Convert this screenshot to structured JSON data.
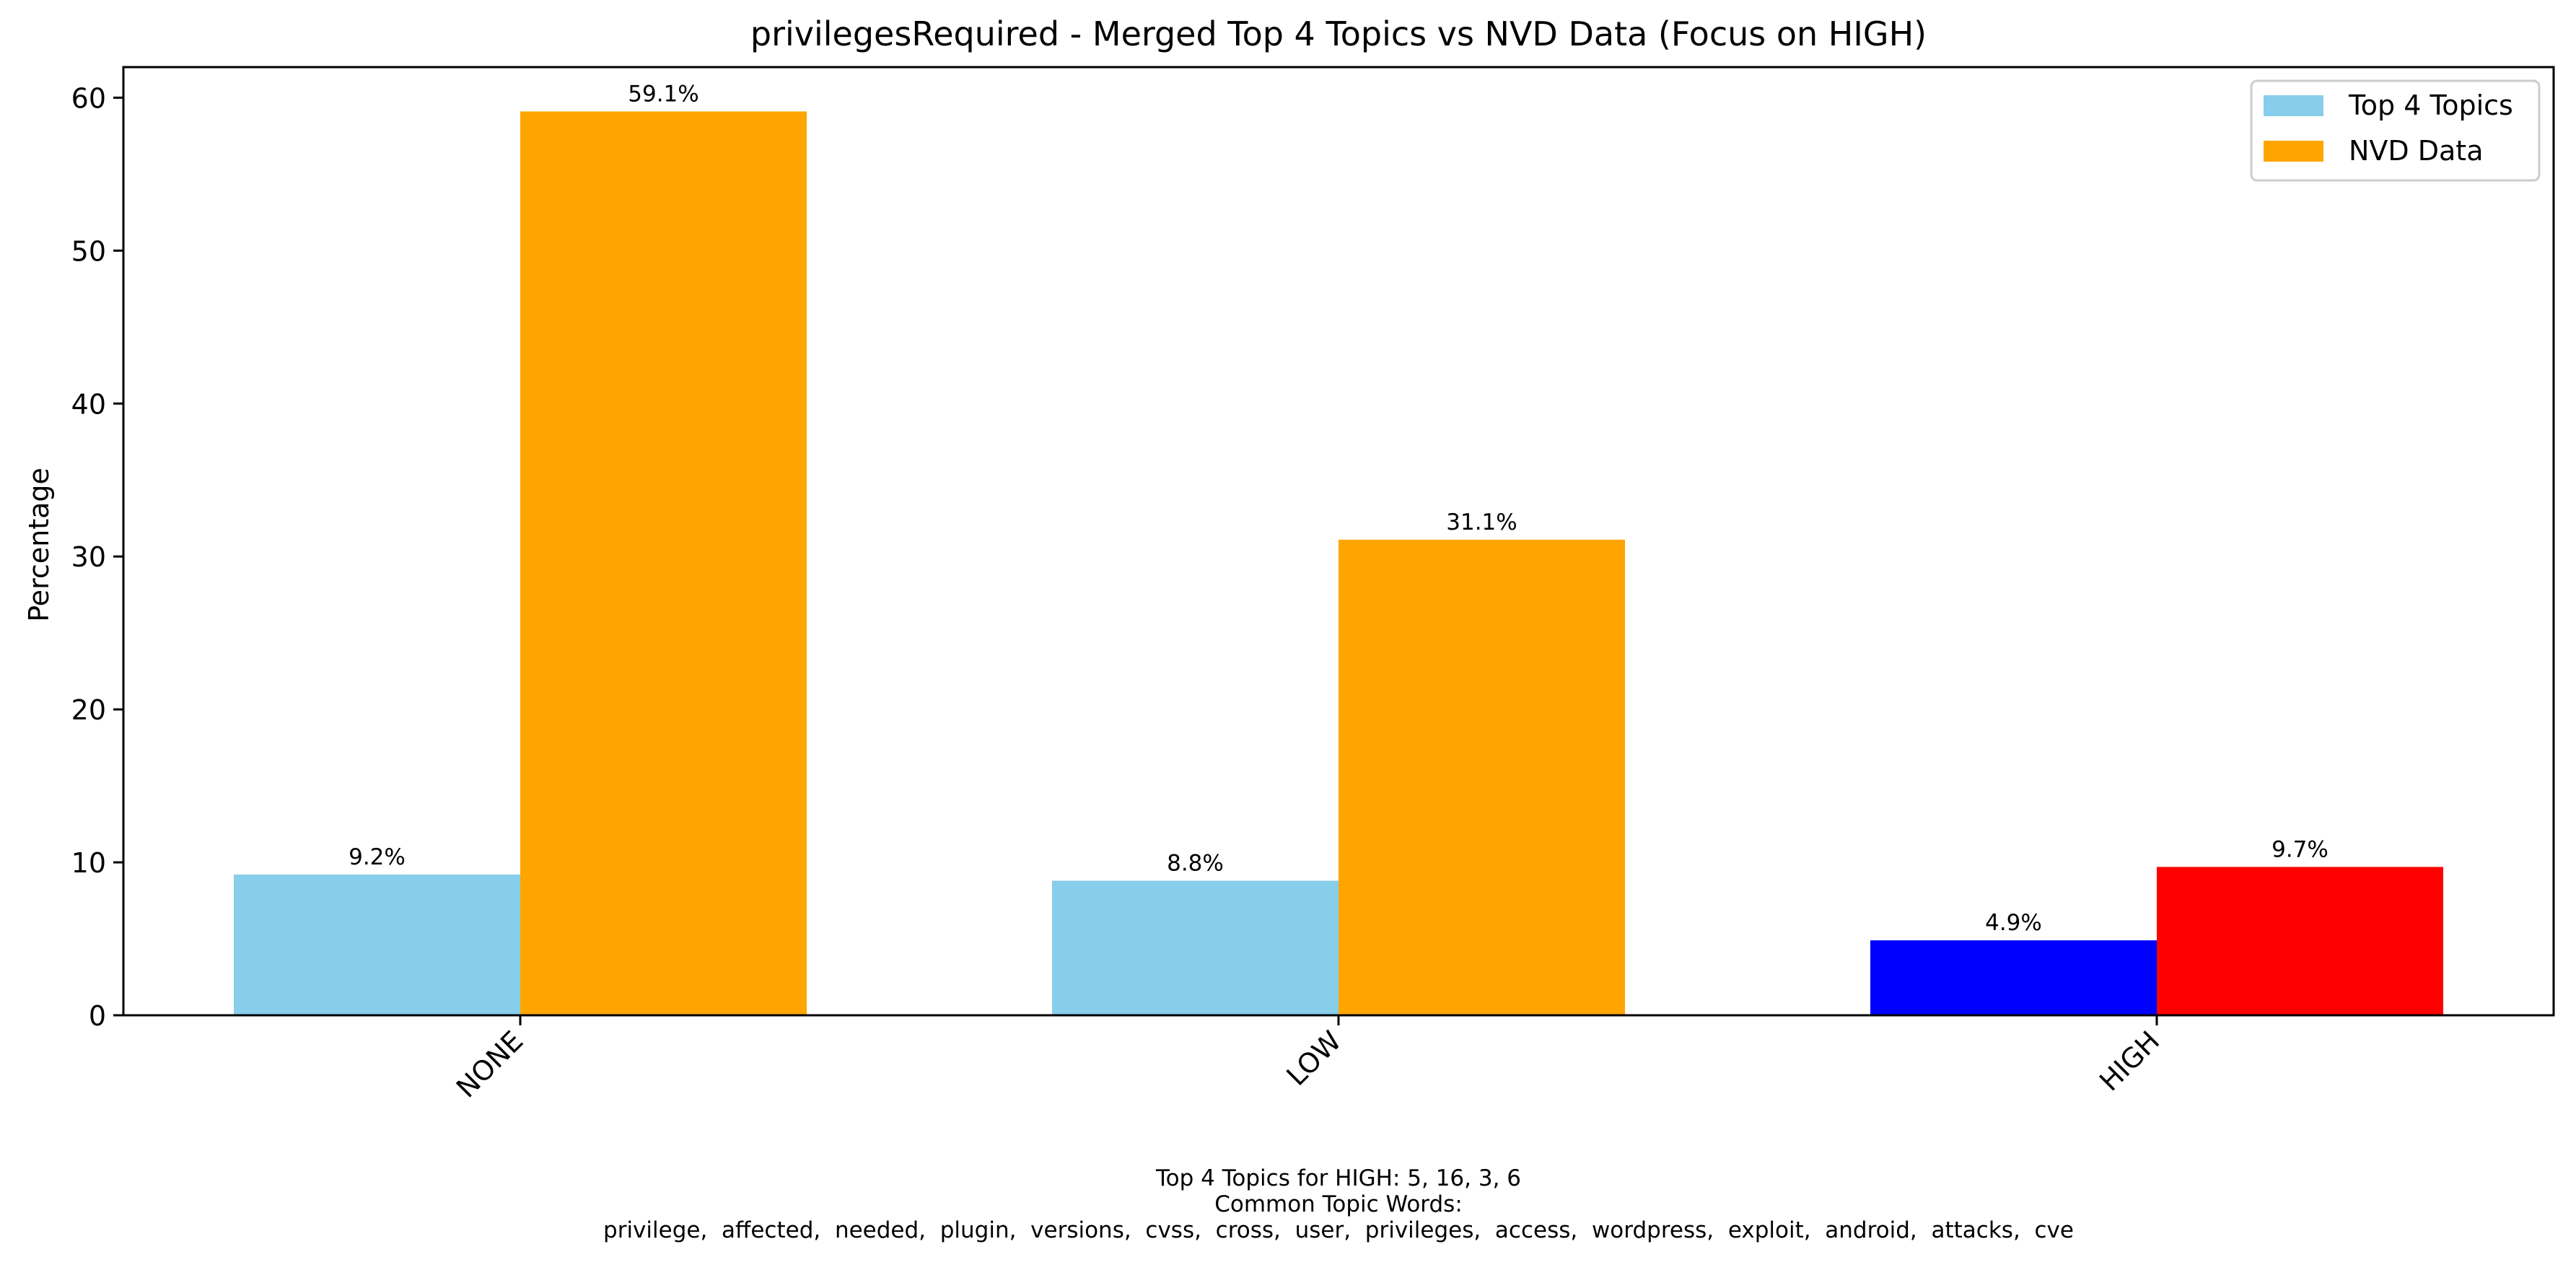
{
  "chart_data": {
    "type": "bar",
    "title": "privilegesRequired - Merged Top 4 Topics vs NVD Data (Focus on HIGH)",
    "xlabel": "",
    "ylabel": "Percentage",
    "categories": [
      "NONE",
      "LOW",
      "HIGH"
    ],
    "ylim": [
      0,
      62
    ],
    "yticks": [
      0,
      10,
      20,
      30,
      40,
      50,
      60
    ],
    "grid": false,
    "legend_position": "top-right",
    "series": [
      {
        "name": "Top 4 Topics",
        "values": [
          9.2,
          8.8,
          4.9
        ],
        "labels": [
          "9.2%",
          "8.8%",
          "4.9%"
        ],
        "color": "#87CEEB",
        "point_colors": [
          "#87CEEB",
          "#87CEEB",
          "#0000FF"
        ]
      },
      {
        "name": "NVD Data",
        "values": [
          59.1,
          31.1,
          9.7
        ],
        "labels": [
          "59.1%",
          "31.1%",
          "9.7%"
        ],
        "color": "#FFA500",
        "point_colors": [
          "#FFA500",
          "#FFA500",
          "#FF0000"
        ]
      }
    ],
    "footnote": {
      "line1": "Top 4 Topics for HIGH: 5, 16, 3, 6",
      "line2": "Common Topic Words:",
      "line3": "privilege,  affected,  needed,  plugin,  versions,  cvss,  cross,  user,  privileges,  access,  wordpress,  exploit,  android,  attacks,  cve"
    }
  }
}
